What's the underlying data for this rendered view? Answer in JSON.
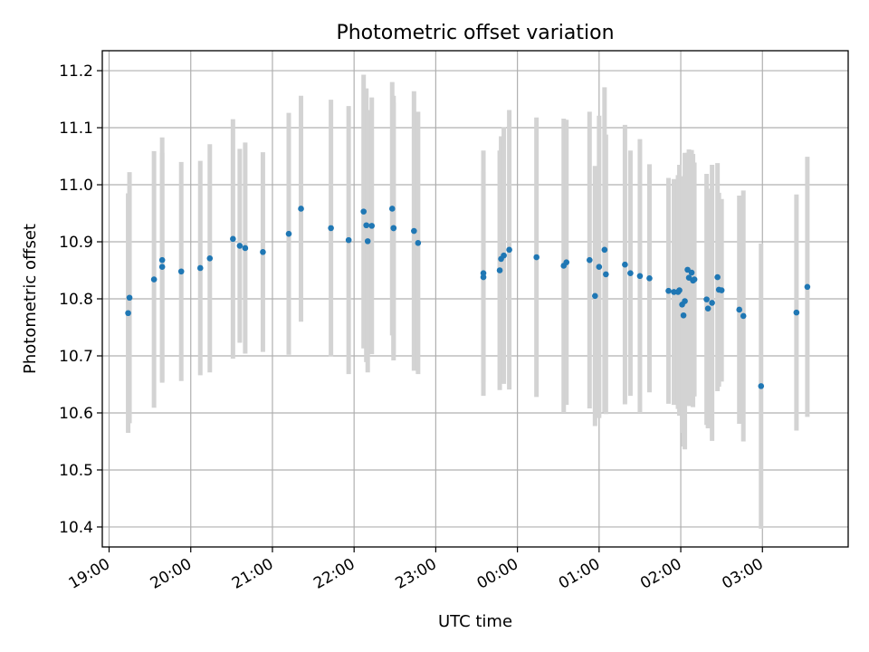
{
  "chart_data": {
    "type": "scatter",
    "title": "Photometric offset variation",
    "xlabel": "UTC time",
    "ylabel": "Photometric offset",
    "grid": true,
    "colors": {
      "point": "#1f77b4",
      "errorbar": "#d3d3d3",
      "grid": "#b0b0b0"
    },
    "xlim": [
      "18:55",
      "04:03"
    ],
    "ylim": [
      10.365,
      11.235
    ],
    "x_ticks": [
      "19:00",
      "20:00",
      "21:00",
      "22:00",
      "23:00",
      "00:00",
      "01:00",
      "02:00",
      "03:00"
    ],
    "y_ticks": [
      "10.4",
      "10.5",
      "10.6",
      "10.7",
      "10.8",
      "10.9",
      "11.0",
      "11.1",
      "11.2"
    ],
    "series": [
      {
        "x": [
          "19:14",
          "19:15",
          "19:33",
          "19:39",
          "19:39",
          "19:53",
          "20:07",
          "20:14",
          "20:31",
          "20:36",
          "20:40",
          "20:53",
          "21:12",
          "21:21",
          "21:43",
          "21:56",
          "22:07",
          "22:09",
          "22:10",
          "22:13",
          "22:28",
          "22:29",
          "22:29",
          "22:44",
          "22:47",
          "23:35",
          "23:35",
          "23:47",
          "23:48",
          "23:50",
          "23:54",
          "00:14",
          "00:34",
          "00:36",
          "00:53",
          "00:57",
          "01:00",
          "01:04",
          "01:05",
          "01:19",
          "01:23",
          "01:30",
          "01:37",
          "01:51",
          "01:55",
          "01:58",
          "01:59",
          "02:01",
          "02:02",
          "02:03",
          "02:05",
          "02:06",
          "02:08",
          "02:09",
          "02:10",
          "02:19",
          "02:20",
          "02:23",
          "02:27",
          "02:28",
          "02:30",
          "02:43",
          "02:46",
          "02:59",
          "03:25",
          "03:33"
        ],
        "y": [
          10.775,
          10.802,
          10.834,
          10.868,
          10.856,
          10.848,
          10.854,
          10.871,
          10.905,
          10.893,
          10.889,
          10.882,
          10.914,
          10.958,
          10.924,
          10.903,
          10.953,
          10.929,
          10.901,
          10.928,
          10.958,
          10.924,
          10.924,
          10.919,
          10.898,
          10.845,
          10.838,
          10.85,
          10.87,
          10.876,
          10.886,
          10.873,
          10.858,
          10.864,
          10.868,
          10.805,
          10.856,
          10.886,
          10.843,
          10.86,
          10.845,
          10.84,
          10.836,
          10.814,
          10.812,
          10.812,
          10.815,
          10.79,
          10.771,
          10.796,
          10.851,
          10.837,
          10.846,
          10.832,
          10.834,
          10.799,
          10.783,
          10.793,
          10.838,
          10.816,
          10.815,
          10.781,
          10.77,
          10.647,
          10.776,
          10.821
        ],
        "err": [
          0.21,
          0.22,
          0.225,
          0.215,
          0.2,
          0.192,
          0.188,
          0.2,
          0.21,
          0.17,
          0.185,
          0.175,
          0.212,
          0.198,
          0.225,
          0.235,
          0.24,
          0.24,
          0.23,
          0.225,
          0.222,
          0.232,
          0.22,
          0.245,
          0.23,
          0.215,
          0.185,
          0.21,
          0.215,
          0.225,
          0.245,
          0.245,
          0.258,
          0.25,
          0.26,
          0.228,
          0.265,
          0.285,
          0.245,
          0.245,
          0.215,
          0.24,
          0.2,
          0.198,
          0.198,
          0.205,
          0.22,
          0.225,
          0.23,
          0.26,
          0.205,
          0.225,
          0.215,
          0.222,
          0.205,
          0.22,
          0.21,
          0.242,
          0.2,
          0.17,
          0.16,
          0.2,
          0.22,
          0.25,
          0.207,
          0.228
        ]
      }
    ]
  }
}
